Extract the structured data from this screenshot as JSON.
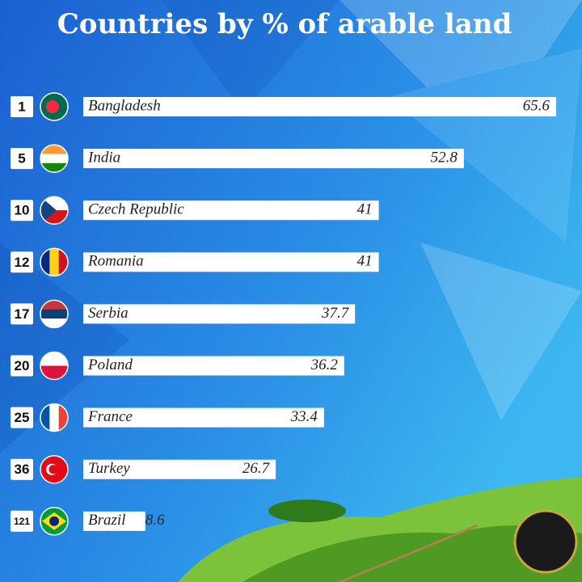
{
  "chart_data": {
    "type": "bar",
    "orientation": "horizontal",
    "title": "Countries by % of arable land",
    "ranks": [
      "1",
      "5",
      "10",
      "12",
      "17",
      "20",
      "25",
      "36",
      "121"
    ],
    "categories": [
      "Bangladesh",
      "India",
      "Czech Republic",
      "Romania",
      "Serbia",
      "Poland",
      "France",
      "Turkey",
      "Brazil"
    ],
    "values": [
      65.6,
      52.8,
      41,
      41,
      37.7,
      36.2,
      33.4,
      26.7,
      8.6
    ],
    "color": "#ffffff"
  }
}
